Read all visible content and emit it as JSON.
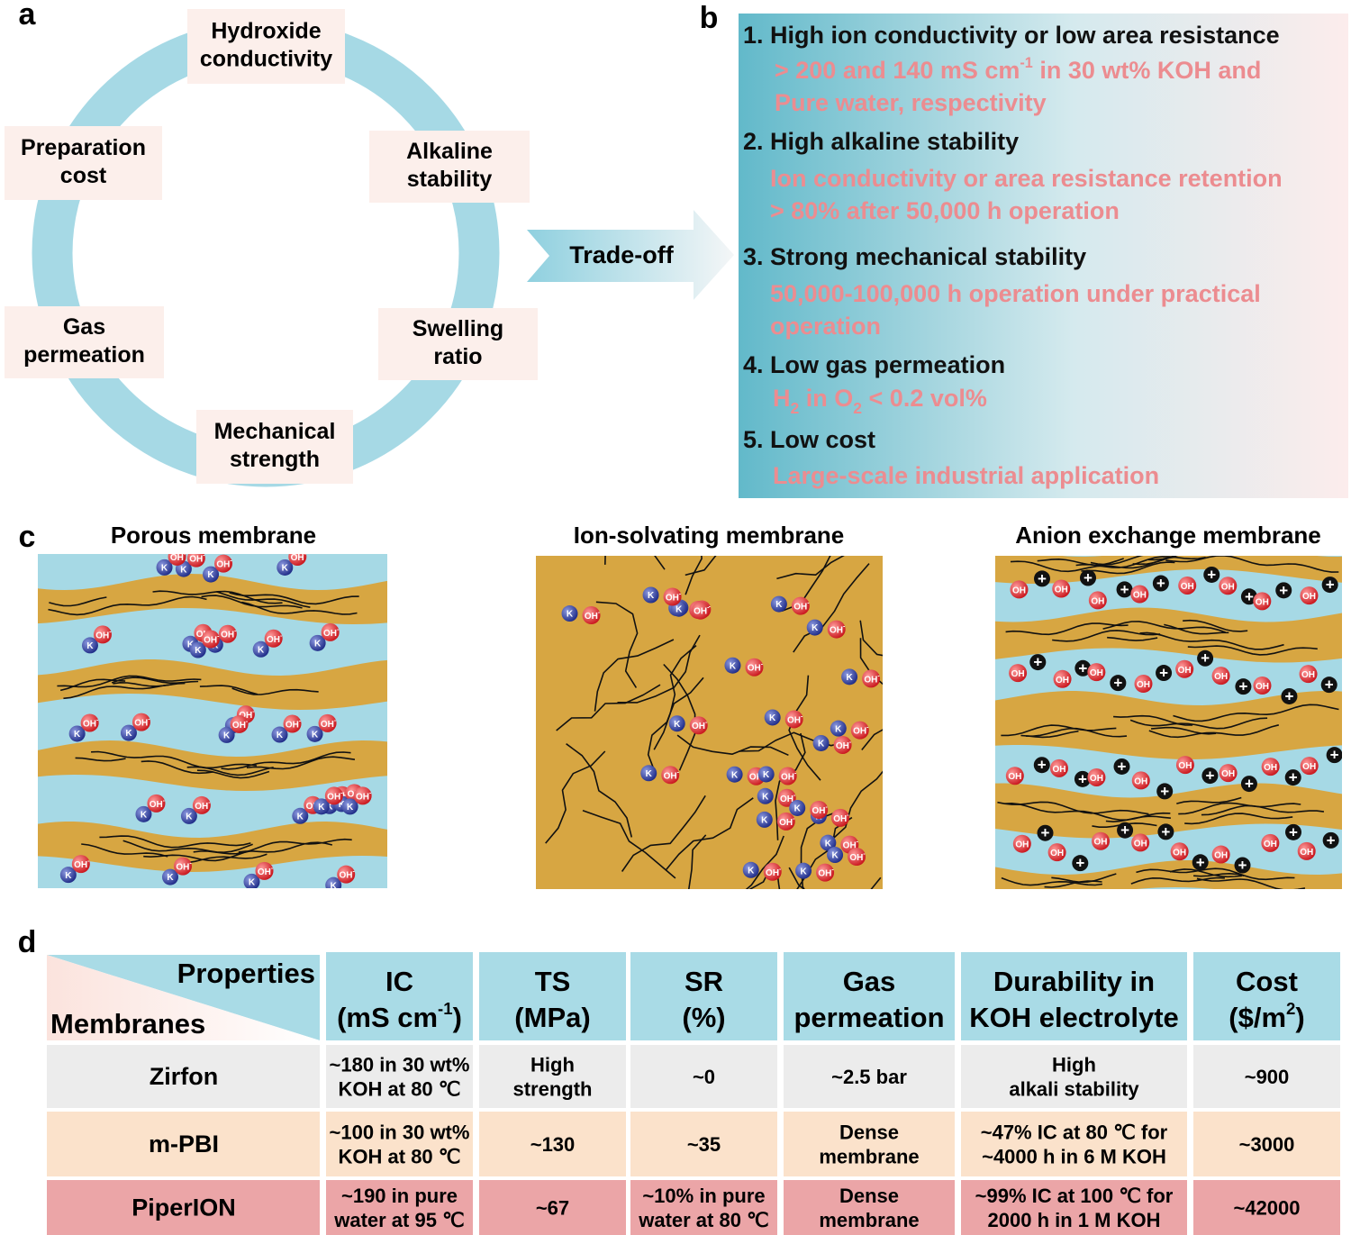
{
  "panel_labels": [
    "a",
    "b",
    "c",
    "d"
  ],
  "ring": {
    "items": [
      [
        "Hydroxide",
        "conductivity"
      ],
      [
        "Alkaline",
        "stability"
      ],
      [
        "Swelling",
        "ratio"
      ],
      [
        "Mechanical",
        "strength"
      ],
      [
        "Gas",
        "permeation"
      ],
      [
        "Preparation",
        "cost"
      ]
    ]
  },
  "arrow": "Trade-off",
  "requirements": [
    {
      "title": "1. High ion conductivity or low area resistance",
      "detail": [
        [
          "> 200 and 140 mS cm",
          {
            "sup": "-1"
          },
          " in 30 wt% KOH and"
        ],
        [
          "Pure water, respectivity"
        ]
      ]
    },
    {
      "title": "2. High alkaline stability",
      "detail": [
        [
          "Ion conductivity or area resistance retention"
        ],
        [
          "> 80% after 50,000 h operation"
        ]
      ]
    },
    {
      "title": "3. Strong mechanical stability",
      "detail": [
        [
          "50,000-100,000 h operation under practical"
        ],
        [
          "operation"
        ]
      ]
    },
    {
      "title": "4. Low gas permeation",
      "detail": [
        [
          "H",
          {
            "sub": "2"
          },
          " in O",
          {
            "sub": "2"
          },
          " < 0.2 vol%"
        ]
      ]
    },
    {
      "title": "5. Low cost",
      "detail": [
        [
          "Large-scale industrial application"
        ]
      ]
    }
  ],
  "membranes": [
    {
      "title": "Porous membrane"
    },
    {
      "title": "Ion-solvating membrane"
    },
    {
      "title": "Anion exchange membrane"
    }
  ],
  "ions": {
    "cation": "K",
    "anion": "OH",
    "anion_charge": "-",
    "fixed_charge": "+"
  },
  "table": {
    "corner": {
      "properties": "Properties",
      "membranes": "Membranes"
    },
    "columns": [
      [
        [
          "IC"
        ],
        [
          "(mS cm",
          {
            "sup": "-1"
          },
          ")"
        ]
      ],
      [
        [
          "TS"
        ],
        [
          "(MPa)"
        ]
      ],
      [
        [
          "SR"
        ],
        [
          "(%)"
        ]
      ],
      [
        [
          "Gas"
        ],
        [
          "permeation"
        ]
      ],
      [
        [
          "Durability in"
        ],
        [
          "KOH electrolyte"
        ]
      ],
      [
        [
          "Cost"
        ],
        [
          "($/m",
          {
            "sup": "2"
          },
          ")"
        ]
      ]
    ],
    "rows": [
      {
        "name": "Zirfon",
        "color": "#ececec",
        "cells": [
          [
            "~180 in 30 wt%",
            "KOH at 80 ℃"
          ],
          [
            "High",
            "strength"
          ],
          [
            "~0"
          ],
          [
            "~2.5 bar"
          ],
          [
            "High",
            "alkali stability"
          ],
          [
            "~900"
          ]
        ]
      },
      {
        "name": "m-PBI",
        "color": "#fbe2cb",
        "cells": [
          [
            "~100 in 30 wt%",
            "KOH at 80 ℃"
          ],
          [
            "~130"
          ],
          [
            "~35"
          ],
          [
            "Dense",
            "membrane"
          ],
          [
            "~47% IC at 80 ℃ for",
            "~4000 h in 6 M KOH"
          ],
          [
            "~3000"
          ]
        ]
      },
      {
        "name": "PiperION",
        "color": "#eba5a7",
        "cells": [
          [
            "~190 in pure",
            "water at 95 ℃"
          ],
          [
            "~67"
          ],
          [
            "~10% in pure",
            "water at 80 ℃"
          ],
          [
            "Dense",
            "membrane"
          ],
          [
            "~99% IC at 100 ℃ for",
            "2000 h in 1 M KOH"
          ],
          [
            "~42000"
          ]
        ]
      }
    ]
  }
}
